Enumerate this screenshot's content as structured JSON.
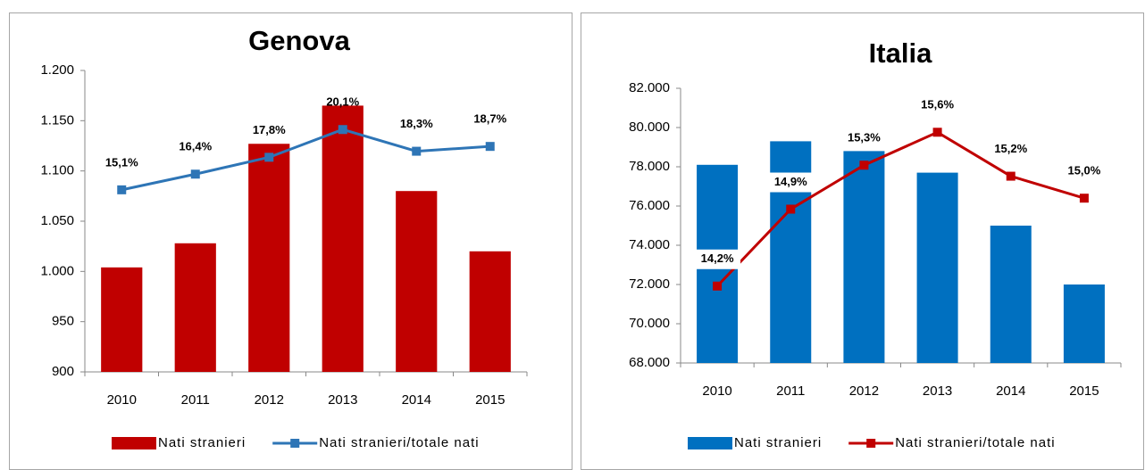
{
  "chart_data": [
    {
      "type": "bar",
      "title": "Genova",
      "categories": [
        "2010",
        "2011",
        "2012",
        "2013",
        "2014",
        "2015"
      ],
      "series": [
        {
          "name": "Nati stranieri",
          "type": "bar",
          "color": "#c00000",
          "values": [
            1004,
            1028,
            1127,
            1165,
            1080,
            1020
          ]
        },
        {
          "name": "Nati stranieri/totale nati",
          "type": "line",
          "axis": "y2",
          "color": "#2e75b6",
          "values": [
            15.1,
            16.4,
            17.8,
            20.1,
            18.3,
            18.7
          ],
          "value_labels": [
            "15,1%",
            "16,4%",
            "17,8%",
            "20,1%",
            "18,3%",
            "18,7%"
          ]
        }
      ],
      "ylim": [
        900,
        1200
      ],
      "yticks": [
        900,
        950,
        {
          "value": 1000,
          "label": "1.000"
        },
        {
          "value": 1050,
          "label": "1.050"
        },
        {
          "value": 1100,
          "label": "1.100"
        },
        {
          "value": 1150,
          "label": "1.150"
        },
        {
          "value": 1200,
          "label": "1.200"
        }
      ],
      "y2lim": [
        0,
        25
      ],
      "legend": "bottom"
    },
    {
      "type": "bar",
      "title": "Italia",
      "categories": [
        "2010",
        "2011",
        "2012",
        "2013",
        "2014",
        "2015"
      ],
      "series": [
        {
          "name": "Nati stranieri",
          "type": "bar",
          "color": "#0070c0",
          "values": [
            78100,
            79300,
            78800,
            77700,
            75000,
            72000
          ]
        },
        {
          "name": "Nati stranieri/totale nati",
          "type": "line",
          "axis": "y2",
          "color": "#c00000",
          "values": [
            14.2,
            14.9,
            15.3,
            15.6,
            15.2,
            15.0
          ],
          "value_labels": [
            "14,2%",
            "14,9%",
            "15,3%",
            "15,6%",
            "15,2%",
            "15,0%"
          ]
        }
      ],
      "ylim": [
        68000,
        82000
      ],
      "yticks": [
        {
          "value": 68000,
          "label": "68.000"
        },
        {
          "value": 70000,
          "label": "70.000"
        },
        {
          "value": 72000,
          "label": "72.000"
        },
        {
          "value": 74000,
          "label": "74.000"
        },
        {
          "value": 76000,
          "label": "76.000"
        },
        {
          "value": 78000,
          "label": "78.000"
        },
        {
          "value": 80000,
          "label": "80.000"
        },
        {
          "value": 82000,
          "label": "82.000"
        }
      ],
      "y2lim": [
        13.5,
        16.0
      ],
      "legend": "bottom"
    }
  ]
}
